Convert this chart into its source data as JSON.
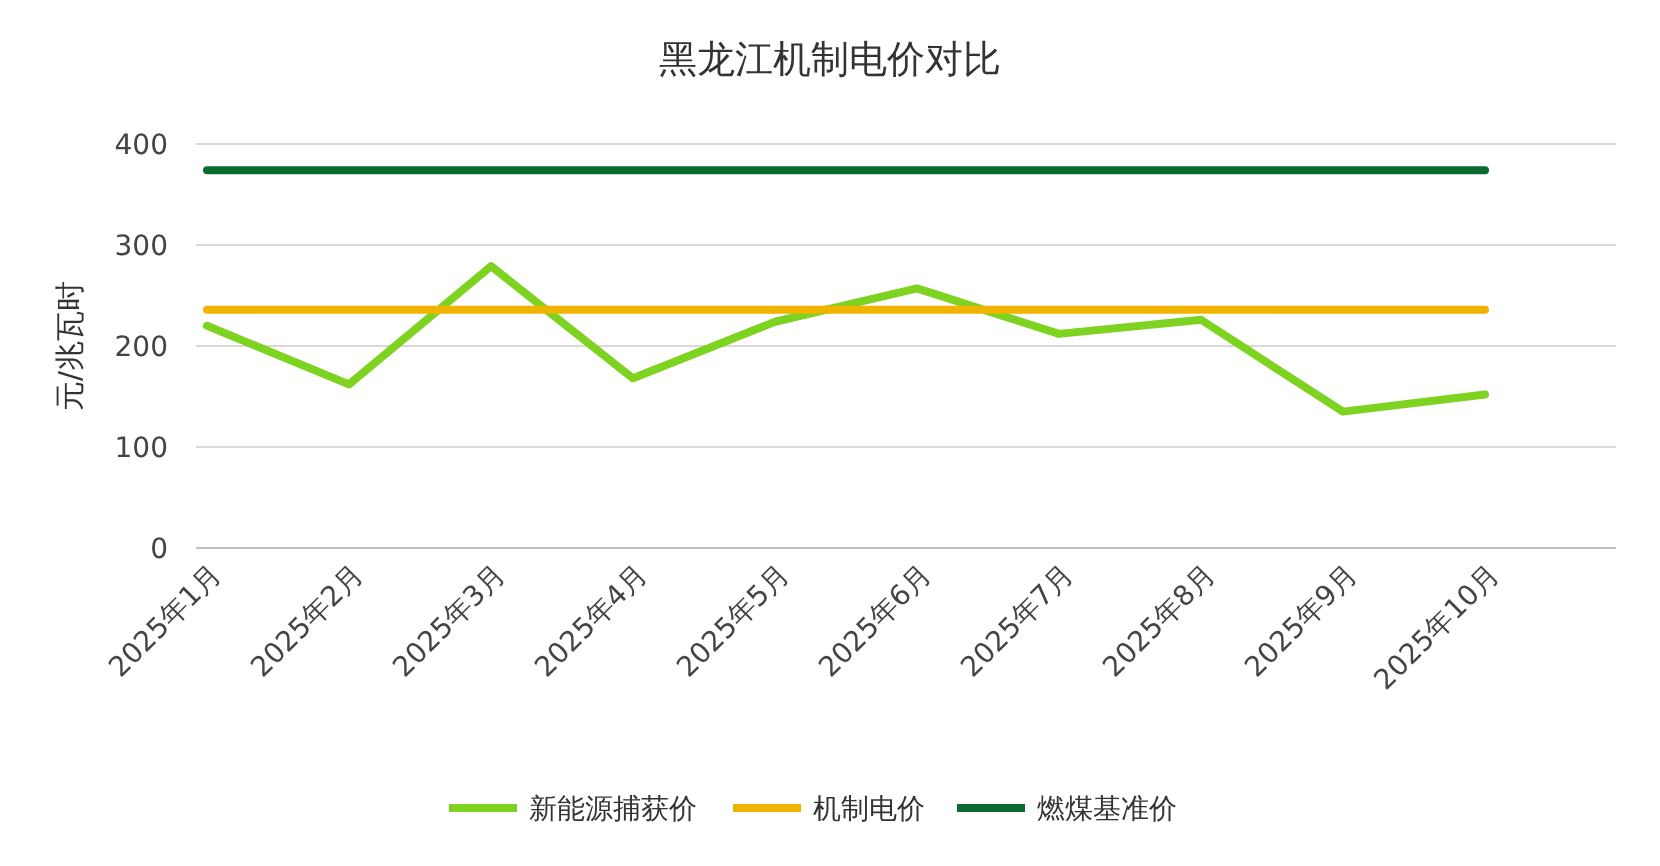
{
  "chart_data": {
    "type": "line",
    "title": "黑龙江机制电价对比",
    "ylabel": "元/兆瓦时",
    "categories": [
      "2025年1月",
      "2025年2月",
      "2025年3月",
      "2025年4月",
      "2025年5月",
      "2025年6月",
      "2025年7月",
      "2025年8月",
      "2025年9月",
      "2025年10月"
    ],
    "series": [
      {
        "name": "新能源捕获价",
        "color": "#7ed321",
        "values": [
          220,
          162,
          279,
          168,
          224,
          257,
          212,
          226,
          135,
          152
        ]
      },
      {
        "name": "机制电价",
        "color": "#f0b400",
        "values": [
          236,
          236,
          236,
          236,
          236,
          236,
          236,
          236,
          236,
          236
        ]
      },
      {
        "name": "燃煤基准价",
        "color": "#0b6b2e",
        "values": [
          374,
          374,
          374,
          374,
          374,
          374,
          374,
          374,
          374,
          374
        ]
      }
    ],
    "ylim": [
      0,
      400
    ],
    "yticks": [
      0,
      100,
      200,
      300,
      400
    ],
    "grid": "y",
    "legend": "bottom",
    "marker": "none",
    "line_style": "solid"
  }
}
